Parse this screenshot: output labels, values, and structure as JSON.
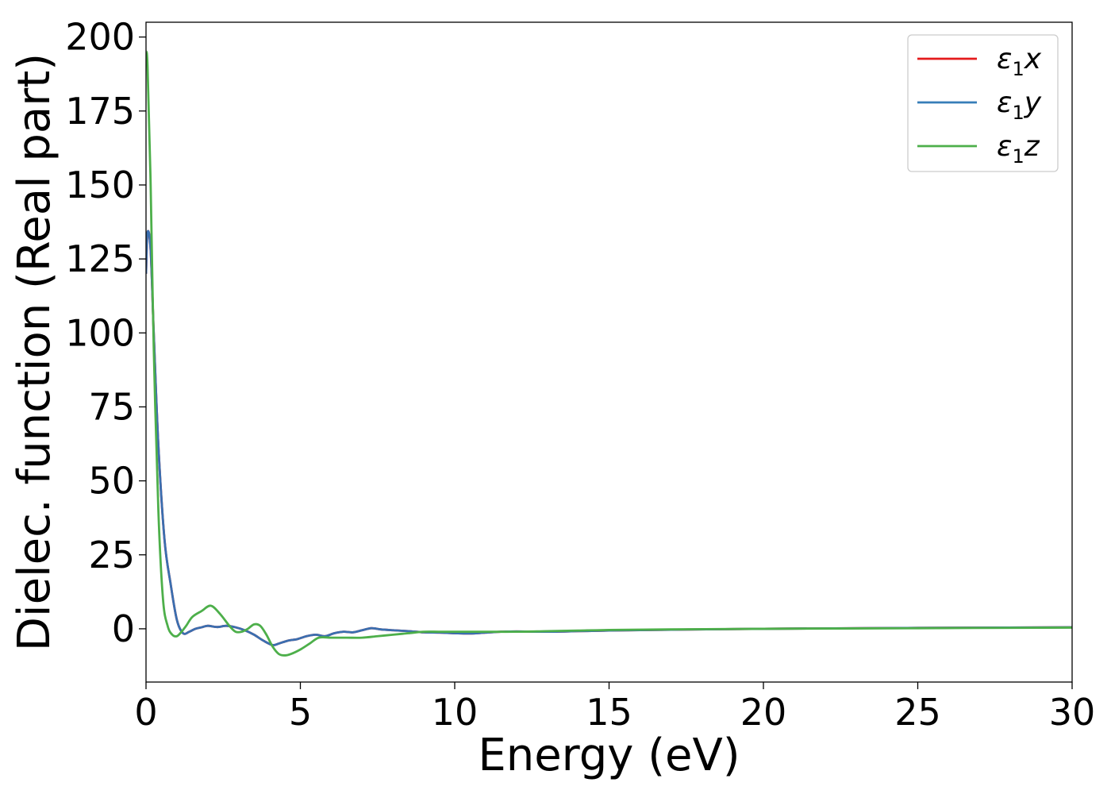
{
  "chart_data": {
    "type": "line",
    "xlabel": "Energy (eV)",
    "ylabel": "Dielec. function (Real part)",
    "xlim": [
      0,
      30
    ],
    "ylim": [
      -18,
      205
    ],
    "xticks": [
      0,
      5,
      10,
      15,
      20,
      25,
      30
    ],
    "yticks": [
      0,
      25,
      50,
      75,
      100,
      125,
      150,
      175,
      200
    ],
    "grid": false,
    "legend_position": "top-right",
    "legend": [
      {
        "symbol": "ε",
        "sub": "1",
        "axis": "x",
        "color": "#e41a1c"
      },
      {
        "symbol": "ε",
        "sub": "1",
        "axis": "y",
        "color": "#377eb8"
      },
      {
        "symbol": "ε",
        "sub": "1",
        "axis": "z",
        "color": "#4daf4a"
      }
    ],
    "series": [
      {
        "color": "#e41a1c",
        "x": [
          0,
          0.05,
          0.15,
          0.25,
          0.4,
          0.6,
          0.8,
          1.0,
          1.2,
          1.4,
          1.6,
          1.8,
          2.0,
          2.3,
          2.6,
          2.9,
          3.2,
          3.5,
          3.8,
          4.1,
          4.3,
          4.6,
          4.9,
          5.2,
          5.5,
          5.8,
          6.1,
          6.4,
          6.7,
          7.0,
          7.3,
          7.6,
          8.0,
          8.5,
          9.0,
          9.5,
          10.0,
          10.5,
          11.0,
          11.5,
          12.0,
          13.0,
          14.0,
          15.0,
          17.0,
          20.0,
          25.0,
          30.0
        ],
        "y": [
          120,
          134,
          128,
          100,
          62,
          30,
          15,
          3,
          -1.5,
          -1,
          0,
          0.5,
          1,
          0.6,
          1,
          0.5,
          -0.5,
          -2,
          -4,
          -5.5,
          -5,
          -4,
          -3.5,
          -2.5,
          -2,
          -2.5,
          -1.5,
          -1,
          -1.2,
          -0.5,
          0.2,
          -0.2,
          -0.5,
          -0.8,
          -1.2,
          -1.3,
          -1.5,
          -1.6,
          -1.3,
          -1,
          -0.9,
          -1,
          -0.8,
          -0.6,
          -0.3,
          0,
          0.3,
          0.5
        ]
      },
      {
        "color": "#3a6fb0",
        "x": [
          0,
          0.05,
          0.15,
          0.25,
          0.4,
          0.6,
          0.8,
          1.0,
          1.2,
          1.4,
          1.6,
          1.8,
          2.0,
          2.3,
          2.6,
          2.9,
          3.2,
          3.5,
          3.8,
          4.1,
          4.3,
          4.6,
          4.9,
          5.2,
          5.5,
          5.8,
          6.1,
          6.4,
          6.7,
          7.0,
          7.3,
          7.6,
          8.0,
          8.5,
          9.0,
          9.5,
          10.0,
          10.5,
          11.0,
          11.5,
          12.0,
          13.0,
          14.0,
          15.0,
          17.0,
          20.0,
          25.0,
          30.0
        ],
        "y": [
          120,
          134,
          128,
          100,
          62,
          30,
          15,
          3,
          -1.5,
          -1,
          0,
          0.5,
          1,
          0.6,
          1,
          0.5,
          -0.5,
          -2,
          -4,
          -5.5,
          -5,
          -4,
          -3.5,
          -2.5,
          -2,
          -2.5,
          -1.5,
          -1,
          -1.2,
          -0.5,
          0.2,
          -0.2,
          -0.5,
          -0.8,
          -1.2,
          -1.3,
          -1.5,
          -1.6,
          -1.3,
          -1,
          -0.9,
          -1,
          -0.8,
          -0.6,
          -0.3,
          0,
          0.3,
          0.5
        ]
      },
      {
        "color": "#4daf4a",
        "x": [
          0,
          0.05,
          0.15,
          0.25,
          0.4,
          0.55,
          0.7,
          0.85,
          1.0,
          1.15,
          1.3,
          1.5,
          1.8,
          2.1,
          2.4,
          2.7,
          2.9,
          3.1,
          3.3,
          3.5,
          3.7,
          3.9,
          4.1,
          4.3,
          4.5,
          4.7,
          5.0,
          5.3,
          5.6,
          6.0,
          6.5,
          7.0,
          7.5,
          8.0,
          8.5,
          9.0,
          9.5,
          10.0,
          10.5,
          11.0,
          12.0,
          13.0,
          14.0,
          15.0,
          17.0,
          20.0,
          25.0,
          30.0
        ],
        "y": [
          195,
          190,
          150,
          95,
          40,
          10,
          1,
          -2,
          -2.5,
          -1,
          1,
          4,
          6,
          7.8,
          5,
          1,
          -1,
          -1,
          0,
          1.5,
          1,
          -2,
          -6,
          -8.5,
          -9,
          -8.5,
          -7,
          -5,
          -3,
          -3,
          -3,
          -3,
          -2.5,
          -2,
          -1.5,
          -1,
          -1,
          -1,
          -1,
          -1,
          -1,
          -0.8,
          -0.6,
          -0.4,
          -0.2,
          0,
          0.2,
          0.4
        ]
      }
    ]
  }
}
